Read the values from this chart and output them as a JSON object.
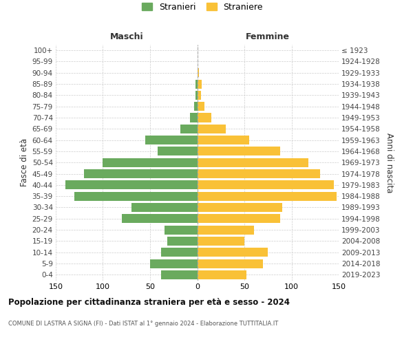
{
  "age_groups": [
    "0-4",
    "5-9",
    "10-14",
    "15-19",
    "20-24",
    "25-29",
    "30-34",
    "35-39",
    "40-44",
    "45-49",
    "50-54",
    "55-59",
    "60-64",
    "65-69",
    "70-74",
    "75-79",
    "80-84",
    "85-89",
    "90-94",
    "95-99",
    "100+"
  ],
  "birth_years": [
    "2019-2023",
    "2014-2018",
    "2009-2013",
    "2004-2008",
    "1999-2003",
    "1994-1998",
    "1989-1993",
    "1984-1988",
    "1979-1983",
    "1974-1978",
    "1969-1973",
    "1964-1968",
    "1959-1963",
    "1954-1958",
    "1949-1953",
    "1944-1948",
    "1939-1943",
    "1934-1938",
    "1929-1933",
    "1924-1928",
    "≤ 1923"
  ],
  "males": [
    38,
    50,
    38,
    32,
    35,
    80,
    70,
    130,
    140,
    120,
    100,
    42,
    55,
    18,
    8,
    3,
    2,
    2,
    0,
    0,
    0
  ],
  "females": [
    52,
    70,
    75,
    50,
    60,
    88,
    90,
    148,
    145,
    130,
    118,
    88,
    55,
    30,
    15,
    8,
    4,
    5,
    2,
    0,
    0
  ],
  "male_color": "#6aaa5e",
  "female_color": "#f9c137",
  "male_label": "Stranieri",
  "female_label": "Straniere",
  "title": "Popolazione per cittadinanza straniera per età e sesso - 2024",
  "subtitle": "COMUNE DI LASTRA A SIGNA (FI) - Dati ISTAT al 1° gennaio 2024 - Elaborazione TUTTITALIA.IT",
  "ylabel_left": "Fasce di età",
  "ylabel_right": "Anni di nascita",
  "xlabel_left": "Maschi",
  "xlabel_right": "Femmine",
  "xlim": 150,
  "bg_color": "#ffffff",
  "grid_color": "#cccccc",
  "bar_height": 0.8
}
